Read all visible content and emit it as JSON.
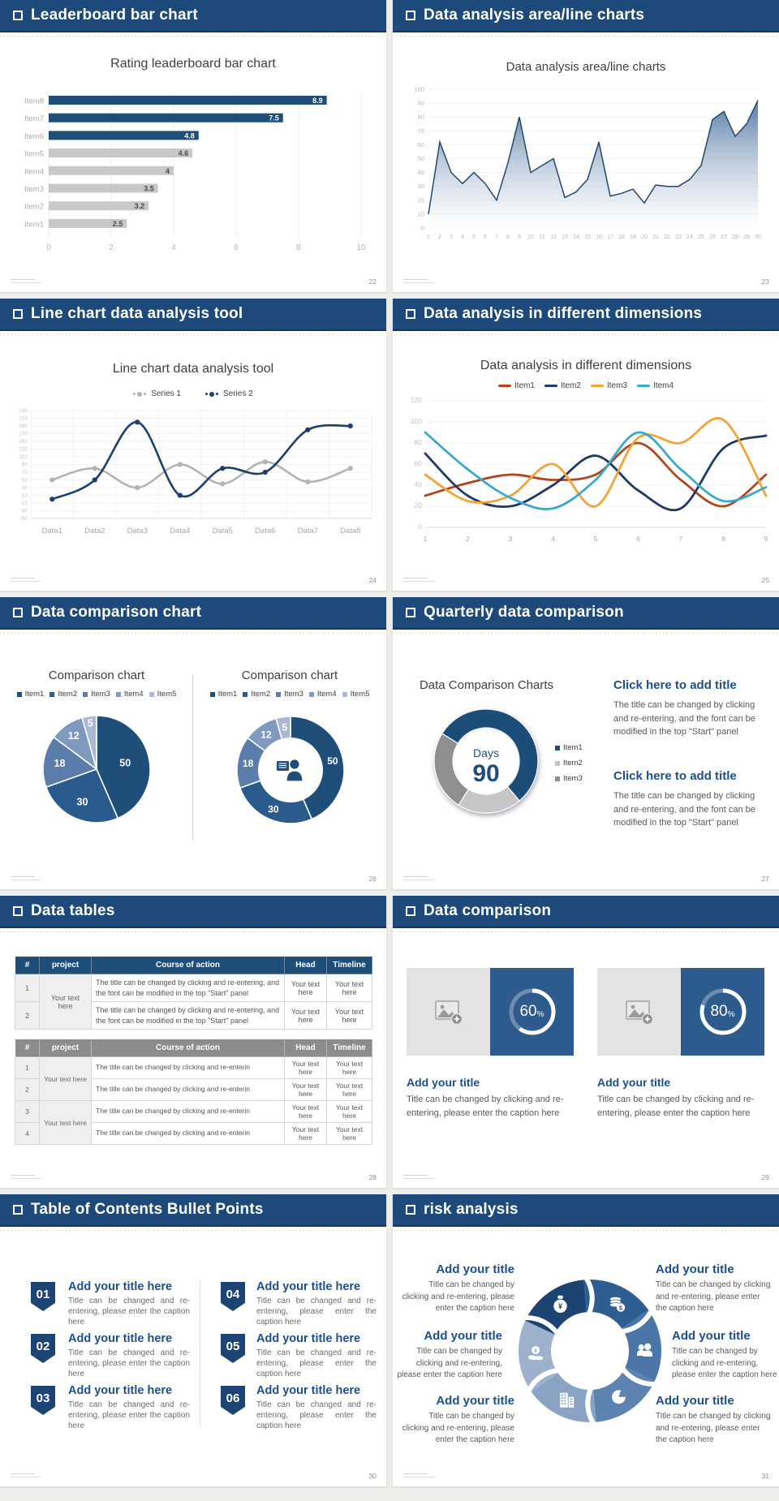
{
  "slides": [
    {
      "header": "Leaderboard bar chart",
      "page_number": "22"
    },
    {
      "header": "Data analysis area/line charts",
      "page_number": "23"
    },
    {
      "header": "Line chart data analysis tool",
      "page_number": "24"
    },
    {
      "header": "Data analysis in different dimensions",
      "page_number": "25"
    },
    {
      "header": "Data comparison chart",
      "page_number": "26"
    },
    {
      "header": "Quarterly data comparison",
      "page_number": "27",
      "left_title": "Data Comparison Charts",
      "blocks": [
        {
          "title": "Click here to add title",
          "body": "The title can be changed by clicking and re-entering, and the font can be modified in the top \"Start\" panel"
        },
        {
          "title": "Click here to add title",
          "body": "The title can be changed by clicking and re-entering, and the font can be modified in the top \"Start\" panel"
        }
      ]
    },
    {
      "header": "Data tables",
      "page_number": "28",
      "table1": {
        "columns": [
          "#",
          "project",
          "Course of action",
          "Head",
          "Timeline"
        ],
        "merged_project": "Your text here",
        "cell": "Your text here",
        "rows": [
          {
            "num": "1",
            "action": "The title can be changed by clicking and re-entering, and the font can be modified in the top \"Start\" panel"
          },
          {
            "num": "2",
            "action": "The title can be changed by clicking and re-entering, and the font can be modified in the top \"Start\" panel"
          }
        ]
      },
      "table2": {
        "columns": [
          "#",
          "project",
          "Course of action",
          "Head",
          "Timeline"
        ],
        "merged_project": "Your text here",
        "cell": "Your text here",
        "rows": [
          {
            "num": "1",
            "action": "The title can be changed by clicking and re-enterin"
          },
          {
            "num": "2",
            "action": "The title can be changed by clicking and re-enterin"
          },
          {
            "num": "3",
            "action": "The title can be changed by clicking and re-enterin"
          },
          {
            "num": "4",
            "action": "The title can be changed by clicking and re-enterin"
          }
        ]
      }
    },
    {
      "header": "Data comparison",
      "page_number": "29",
      "card_title": "Add your title",
      "card_caption": "Title can be changed by clicking and re-entering, please enter the caption here",
      "cards": [
        {
          "percent": "60"
        },
        {
          "percent": "80"
        }
      ]
    },
    {
      "header": "Table of Contents Bullet Points",
      "page_number": "30",
      "item_title": "Add your title here",
      "item_caption": "Title can be changed and re-entering, please enter the caption here",
      "items": [
        {
          "num": "01"
        },
        {
          "num": "02"
        },
        {
          "num": "03"
        },
        {
          "num": "04"
        },
        {
          "num": "05"
        },
        {
          "num": "06"
        }
      ]
    },
    {
      "header": "risk analysis",
      "page_number": "31",
      "block_title": "Add your title",
      "block_caption": "Title can be changed by clicking and re-entering, please enter the caption here",
      "icons": [
        "money-bag-icon",
        "coins-icon",
        "people-icon",
        "pie-chart-icon",
        "building-icon",
        "hand-coin-icon"
      ],
      "wheel_colors": [
        "#1c4372",
        "#2e5d92",
        "#4a76a8",
        "#5d83b0",
        "#8aa3c3",
        "#9db1cc"
      ]
    }
  ],
  "chart_data": [
    {
      "type": "bar",
      "orientation": "horizontal",
      "title": "Rating leaderboard bar chart",
      "categories": [
        "Item1",
        "Item2",
        "Item3",
        "Item4",
        "Item5",
        "Item6",
        "Item7",
        "Item8"
      ],
      "values": [
        2.5,
        3.2,
        3.5,
        4,
        4.6,
        4.8,
        7.5,
        8.9
      ],
      "bar_colors": [
        "#c8c8c8",
        "#c8c8c8",
        "#c8c8c8",
        "#c8c8c8",
        "#c8c8c8",
        "#1f4e79",
        "#1f4e79",
        "#1f4e79"
      ],
      "xlim": [
        0,
        10
      ],
      "xticks": [
        0,
        2,
        4,
        6,
        8,
        10
      ]
    },
    {
      "type": "area",
      "title": "Data analysis area/line charts",
      "x": [
        1,
        2,
        3,
        4,
        5,
        6,
        7,
        8,
        9,
        10,
        11,
        12,
        13,
        14,
        15,
        16,
        17,
        18,
        19,
        20,
        21,
        22,
        23,
        24,
        25,
        26,
        27,
        28,
        29,
        30
      ],
      "values": [
        10,
        62,
        40,
        32,
        40,
        32,
        20,
        47,
        80,
        40,
        45,
        50,
        22,
        26,
        35,
        62,
        23,
        25,
        28,
        18,
        31,
        30,
        30,
        35,
        45,
        78,
        84,
        66,
        75,
        92
      ],
      "ylim": [
        0,
        100
      ],
      "ytick_step": 10,
      "line_color": "#25476e",
      "fill_top": "#4d74a1",
      "fill_bottom": "#f5f8fb"
    },
    {
      "type": "line",
      "title": "Line chart data analysis tool",
      "categories": [
        "Data1",
        "Data2",
        "Data3",
        "Data4",
        "Data5",
        "Data6",
        "Data7",
        "Data8"
      ],
      "ylim": [
        -50,
        230
      ],
      "ytick_step": 20,
      "markers": true,
      "series": [
        {
          "name": "Series 1",
          "color": "#b3b3b3",
          "values": [
            50,
            80,
            30,
            90,
            40,
            97,
            45,
            80
          ]
        },
        {
          "name": "Series 2",
          "color": "#1e3f6e",
          "values": [
            0,
            50,
            200,
            10,
            80,
            70,
            180,
            190
          ]
        }
      ]
    },
    {
      "type": "line",
      "title": "Data analysis in different dimensions",
      "categories": [
        "1",
        "2",
        "3",
        "4",
        "5",
        "6",
        "7",
        "8",
        "9"
      ],
      "ylim": [
        0,
        120
      ],
      "ytick_step": 20,
      "markers": false,
      "series": [
        {
          "name": "Item1",
          "color": "#b0451c",
          "values": [
            30,
            42,
            50,
            45,
            50,
            80,
            45,
            20,
            50
          ]
        },
        {
          "name": "Item2",
          "color": "#1f3864",
          "values": [
            70,
            30,
            20,
            40,
            68,
            35,
            18,
            75,
            87
          ]
        },
        {
          "name": "Item3",
          "color": "#f2a33a",
          "values": [
            50,
            25,
            30,
            60,
            20,
            85,
            80,
            102,
            30
          ]
        },
        {
          "name": "Item4",
          "color": "#3aa9c9",
          "values": [
            90,
            55,
            28,
            18,
            45,
            90,
            55,
            25,
            38
          ]
        }
      ]
    },
    {
      "type": "pie",
      "title": "Comparison chart",
      "labels": [
        "Item1",
        "Item2",
        "Item3",
        "Item4",
        "Item5"
      ],
      "values": [
        50,
        30,
        18,
        12,
        5
      ],
      "colors": [
        "#1f4e79",
        "#2b5a8c",
        "#5b7dab",
        "#8099bf",
        "#a9b9d2"
      ]
    },
    {
      "type": "donut",
      "title": "Comparison chart",
      "labels": [
        "Item1",
        "Item2",
        "Item3",
        "Item4",
        "Item5"
      ],
      "values": [
        50,
        30,
        18,
        12,
        5
      ],
      "colors": [
        "#1f4e79",
        "#2b5a8c",
        "#5b7dab",
        "#8099bf",
        "#a9b9d2"
      ],
      "center_icon": "presenter-icon"
    },
    {
      "type": "donut",
      "labels": [
        "Item1",
        "Item2",
        "Item3"
      ],
      "values": [
        55,
        20,
        25
      ],
      "colors": [
        "#1f4e79",
        "#c6c6c6",
        "#8f8f8f"
      ],
      "start_angle": -58,
      "center_label": "Days",
      "center_value": "90"
    },
    {
      "type": "progress-ring",
      "values": [
        60,
        80
      ],
      "unit": "%",
      "ring_color": "#ffffff",
      "track_color": "rgba(255,255,255,0.3)",
      "panel_color": "#2d5b8e"
    }
  ]
}
